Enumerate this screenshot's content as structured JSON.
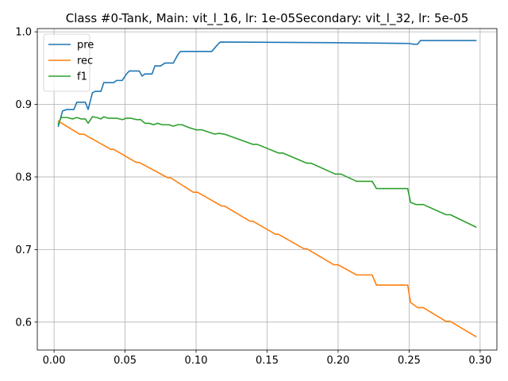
{
  "chart_data": {
    "type": "line",
    "title": "Class #0-Tank, Main: vit_l_16, lr: 1e-05Secondary: vit_l_32, lr: 5e-05",
    "xlabel": "",
    "ylabel": "",
    "xlim": [
      -0.0118,
      0.3118
    ],
    "ylim": [
      0.5615,
      1.0045
    ],
    "xticks": [
      0.0,
      0.05,
      0.1,
      0.15,
      0.2,
      0.25,
      0.3
    ],
    "xtick_labels": [
      "0.00",
      "0.05",
      "0.10",
      "0.15",
      "0.20",
      "0.25",
      "0.30"
    ],
    "yticks": [
      0.6,
      0.7,
      0.8,
      0.9,
      1.0
    ],
    "ytick_labels": [
      "0.6",
      "0.7",
      "0.8",
      "0.9",
      "1.0"
    ],
    "grid": true,
    "legend_position": "upper-left",
    "series": [
      {
        "name": "pre",
        "color": "#1f77b4",
        "points": [
          [
            0.003,
            0.87
          ],
          [
            0.006,
            0.891
          ],
          [
            0.009,
            0.893
          ],
          [
            0.014,
            0.893
          ],
          [
            0.016,
            0.903
          ],
          [
            0.022,
            0.903
          ],
          [
            0.024,
            0.893
          ],
          [
            0.027,
            0.916
          ],
          [
            0.029,
            0.918
          ],
          [
            0.033,
            0.918
          ],
          [
            0.035,
            0.93
          ],
          [
            0.042,
            0.93
          ],
          [
            0.044,
            0.933
          ],
          [
            0.048,
            0.933
          ],
          [
            0.051,
            0.942
          ],
          [
            0.053,
            0.946
          ],
          [
            0.06,
            0.946
          ],
          [
            0.062,
            0.939
          ],
          [
            0.064,
            0.942
          ],
          [
            0.069,
            0.942
          ],
          [
            0.071,
            0.953
          ],
          [
            0.075,
            0.953
          ],
          [
            0.078,
            0.957
          ],
          [
            0.084,
            0.957
          ],
          [
            0.087,
            0.968
          ],
          [
            0.089,
            0.973
          ],
          [
            0.111,
            0.973
          ],
          [
            0.115,
            0.982
          ],
          [
            0.117,
            0.986
          ],
          [
            0.2,
            0.985
          ],
          [
            0.25,
            0.984
          ],
          [
            0.253,
            0.983
          ],
          [
            0.256,
            0.983
          ],
          [
            0.258,
            0.988
          ],
          [
            0.297,
            0.988
          ]
        ]
      },
      {
        "name": "rec",
        "color": "#ff7f0e",
        "points": [
          [
            0.003,
            0.877
          ],
          [
            0.018,
            0.859
          ],
          [
            0.021,
            0.859
          ],
          [
            0.04,
            0.838
          ],
          [
            0.042,
            0.838
          ],
          [
            0.058,
            0.82
          ],
          [
            0.06,
            0.82
          ],
          [
            0.08,
            0.799
          ],
          [
            0.082,
            0.799
          ],
          [
            0.098,
            0.779
          ],
          [
            0.101,
            0.779
          ],
          [
            0.118,
            0.76
          ],
          [
            0.12,
            0.76
          ],
          [
            0.138,
            0.739
          ],
          [
            0.14,
            0.739
          ],
          [
            0.156,
            0.721
          ],
          [
            0.158,
            0.721
          ],
          [
            0.176,
            0.701
          ],
          [
            0.178,
            0.701
          ],
          [
            0.197,
            0.679
          ],
          [
            0.2,
            0.679
          ],
          [
            0.213,
            0.665
          ],
          [
            0.224,
            0.665
          ],
          [
            0.227,
            0.651
          ],
          [
            0.249,
            0.651
          ],
          [
            0.251,
            0.627
          ],
          [
            0.256,
            0.62
          ],
          [
            0.26,
            0.62
          ],
          [
            0.276,
            0.601
          ],
          [
            0.279,
            0.601
          ],
          [
            0.297,
            0.58
          ]
        ]
      },
      {
        "name": "f1",
        "color": "#2ca02c",
        "points": [
          [
            0.003,
            0.873
          ],
          [
            0.005,
            0.882
          ],
          [
            0.009,
            0.882
          ],
          [
            0.013,
            0.88
          ],
          [
            0.016,
            0.882
          ],
          [
            0.019,
            0.88
          ],
          [
            0.022,
            0.88
          ],
          [
            0.024,
            0.874
          ],
          [
            0.027,
            0.883
          ],
          [
            0.03,
            0.882
          ],
          [
            0.033,
            0.88
          ],
          [
            0.035,
            0.883
          ],
          [
            0.038,
            0.881
          ],
          [
            0.044,
            0.881
          ],
          [
            0.048,
            0.879
          ],
          [
            0.051,
            0.881
          ],
          [
            0.054,
            0.881
          ],
          [
            0.058,
            0.879
          ],
          [
            0.061,
            0.879
          ],
          [
            0.064,
            0.874
          ],
          [
            0.067,
            0.874
          ],
          [
            0.07,
            0.872
          ],
          [
            0.073,
            0.874
          ],
          [
            0.076,
            0.872
          ],
          [
            0.081,
            0.872
          ],
          [
            0.084,
            0.87
          ],
          [
            0.087,
            0.872
          ],
          [
            0.09,
            0.872
          ],
          [
            0.095,
            0.868
          ],
          [
            0.1,
            0.865
          ],
          [
            0.104,
            0.865
          ],
          [
            0.113,
            0.859
          ],
          [
            0.116,
            0.86
          ],
          [
            0.12,
            0.859
          ],
          [
            0.14,
            0.845
          ],
          [
            0.143,
            0.845
          ],
          [
            0.158,
            0.833
          ],
          [
            0.161,
            0.833
          ],
          [
            0.178,
            0.819
          ],
          [
            0.181,
            0.819
          ],
          [
            0.198,
            0.804
          ],
          [
            0.202,
            0.804
          ],
          [
            0.213,
            0.794
          ],
          [
            0.224,
            0.794
          ],
          [
            0.227,
            0.784
          ],
          [
            0.249,
            0.784
          ],
          [
            0.251,
            0.765
          ],
          [
            0.255,
            0.762
          ],
          [
            0.26,
            0.762
          ],
          [
            0.276,
            0.748
          ],
          [
            0.279,
            0.748
          ],
          [
            0.297,
            0.731
          ]
        ]
      }
    ]
  }
}
